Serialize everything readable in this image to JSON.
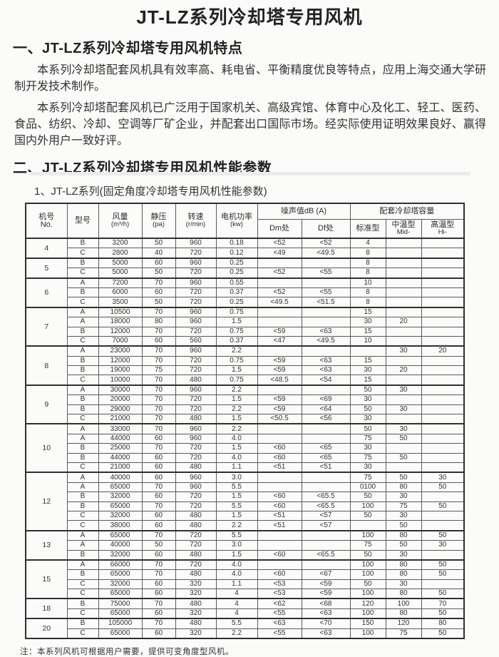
{
  "page": {
    "title": "JT-LZ系列冷却塔专用风机",
    "section1": {
      "heading": "一、JT-LZ系列冷却塔专用风机特点",
      "para1": "本系列冷却塔配套风机具有效率高、耗电省、平衡精度优良等特点，应用上海交通大学研制开发技术制作。",
      "para2": "本系列冷却塔配套风机已广泛用于国家机关、高级宾馆、体育中心及化工、轻工、医药、食品、纺织、冷却、空调等厂矿企业，并配套出口国际市场。经实际使用证明效果良好、赢得国内外用户一致好评。"
    },
    "section2": {
      "heading": "二、JT-LZ系列冷却塔专用风机性能参数",
      "subheading": "1、JT-LZ系列(固定角度冷却塔专用风机性能参数)"
    },
    "note": "注：本系列风机可根据用户需要，提供可变角度型风机。"
  },
  "table": {
    "headers": {
      "machine_no": {
        "l1": "机号",
        "l2": "No."
      },
      "model": "型号",
      "airflow": {
        "l1": "风量",
        "l2": "(m³/h)"
      },
      "static_pressure": {
        "l1": "静压",
        "l2": "(pa)"
      },
      "speed": {
        "l1": "转速",
        "l2": "(r/min)"
      },
      "power": {
        "l1": "电机功率",
        "l2": "(kw)"
      },
      "noise_group": "噪声值dB (A)",
      "noise_dm": "Dm处",
      "noise_df": "Df处",
      "capacity_group": "配套冷却塔容量",
      "cap_std": "标准型",
      "cap_mid": {
        "l1": "中温型",
        "l2": "Mid-"
      },
      "cap_hi": {
        "l1": "高温型",
        "l2": "Hi-"
      }
    },
    "groups": [
      {
        "no": "4",
        "rows": [
          [
            "B",
            "3200",
            "50",
            "960",
            "0.18",
            "<52",
            "<52",
            "4",
            "",
            ""
          ],
          [
            "C",
            "2800",
            "40",
            "720",
            "0.12",
            "<49",
            "<49.5",
            "8",
            "",
            ""
          ]
        ]
      },
      {
        "no": "5",
        "rows": [
          [
            "B",
            "5000",
            "60",
            "960",
            "0.25",
            "",
            "",
            "8",
            "",
            ""
          ],
          [
            "C",
            "5000",
            "50",
            "720",
            "0.25",
            "<52",
            "<55",
            "8",
            "",
            ""
          ]
        ]
      },
      {
        "no": "6",
        "rows": [
          [
            "A",
            "7200",
            "70",
            "960",
            "0.55",
            "",
            "",
            "10",
            "",
            ""
          ],
          [
            "B",
            "6000",
            "60",
            "720",
            "0.37",
            "<52",
            "<55",
            "8",
            "",
            ""
          ],
          [
            "C",
            "3500",
            "50",
            "720",
            "0.25",
            "<49.5",
            "<51.5",
            "8",
            "",
            ""
          ]
        ]
      },
      {
        "no": "7",
        "rows": [
          [
            "A",
            "10500",
            "70",
            "960",
            "0.75",
            "",
            "",
            "15",
            "",
            ""
          ],
          [
            "A",
            "18000",
            "80",
            "960",
            "1.5",
            "",
            "",
            "30",
            "20",
            ""
          ],
          [
            "B",
            "12000",
            "70",
            "720",
            "0.75",
            "<59",
            "<63",
            "15",
            "",
            ""
          ],
          [
            "C",
            "7000",
            "60",
            "560",
            "0.37",
            "<47",
            "<49.5",
            "10",
            "",
            ""
          ]
        ]
      },
      {
        "no": "8",
        "rows": [
          [
            "A",
            "23000",
            "70",
            "960",
            "2.2",
            "",
            "",
            "",
            "30",
            "20"
          ],
          [
            "B",
            "12000",
            "70",
            "720",
            "0.75",
            "<59",
            "<63",
            "15",
            "",
            ""
          ],
          [
            "B",
            "19000",
            "75",
            "720",
            "1.5",
            "<59",
            "<63",
            "30",
            "20",
            ""
          ],
          [
            "C",
            "10000",
            "70",
            "480",
            "0.75",
            "<48.5",
            "<54",
            "15",
            "",
            ""
          ]
        ]
      },
      {
        "no": "9",
        "rows": [
          [
            "A",
            "30000",
            "70",
            "960",
            "2.2",
            "",
            "",
            "50",
            "30",
            ""
          ],
          [
            "B",
            "20000",
            "70",
            "720",
            "1.5",
            "<59",
            "<69",
            "30",
            "",
            ""
          ],
          [
            "B",
            "29000",
            "70",
            "720",
            "2.2",
            "<59",
            "<64",
            "50",
            "30",
            ""
          ],
          [
            "C",
            "21000",
            "70",
            "480",
            "1.5",
            "<50.5",
            "<56",
            "30",
            "",
            ""
          ]
        ]
      },
      {
        "no": "10",
        "rows": [
          [
            "A",
            "33000",
            "70",
            "960",
            "2.2",
            "",
            "",
            "50",
            "30",
            ""
          ],
          [
            "A",
            "44000",
            "60",
            "960",
            "4.0",
            "",
            "",
            "75",
            "50",
            ""
          ],
          [
            "B",
            "25000",
            "70",
            "720",
            "1.5",
            "<60",
            "<65",
            "30",
            "",
            ""
          ],
          [
            "B",
            "44000",
            "60",
            "720",
            "4.0",
            "<60",
            "<65",
            "75",
            "50",
            ""
          ],
          [
            "C",
            "21000",
            "60",
            "480",
            "1.1",
            "<51",
            "<51",
            "30",
            "",
            ""
          ]
        ]
      },
      {
        "no": "12",
        "rows": [
          [
            "A",
            "40000",
            "60",
            "960",
            "3.0",
            "",
            "",
            "75",
            "50",
            "30"
          ],
          [
            "A",
            "65000",
            "70",
            "960",
            "5.5",
            "",
            "",
            "0100",
            "80",
            "50"
          ],
          [
            "B",
            "32000",
            "60",
            "720",
            "1.5",
            "<60",
            "<65.5",
            "50",
            "30",
            ""
          ],
          [
            "B",
            "65000",
            "70",
            "720",
            "5.5",
            "<60",
            "<65.5",
            "100",
            "75",
            "50"
          ],
          [
            "C",
            "32000",
            "60",
            "480",
            "1.5",
            "<51",
            "<57",
            "50",
            "30",
            ""
          ],
          [
            "C",
            "38000",
            "60",
            "480",
            "2.2",
            "<51",
            "<57",
            "",
            "50",
            ""
          ]
        ]
      },
      {
        "no": "13",
        "rows": [
          [
            "A",
            "65000",
            "70",
            "720",
            "5.5",
            "",
            "",
            "100",
            "80",
            "50"
          ],
          [
            "A",
            "40000",
            "50",
            "720",
            "3.0",
            "",
            "",
            "75",
            "50",
            "30"
          ],
          [
            "B",
            "32000",
            "60",
            "480",
            "1.5",
            "<60",
            "<65.5",
            "50",
            "30",
            ""
          ]
        ]
      },
      {
        "no": "15",
        "rows": [
          [
            "A",
            "66000",
            "70",
            "720",
            "4.0",
            "",
            "",
            "100",
            "80",
            "50"
          ],
          [
            "B",
            "65000",
            "70",
            "480",
            "4.0",
            "<60",
            "<67",
            "100",
            "80",
            "50"
          ],
          [
            "C",
            "32000",
            "60",
            "320",
            "1.1",
            "<53",
            "<59",
            "50",
            "30",
            ""
          ],
          [
            "C",
            "65000",
            "60",
            "320",
            "4",
            "<53",
            "<59",
            "100",
            "80",
            "50"
          ]
        ]
      },
      {
        "no": "18",
        "rows": [
          [
            "B",
            "75000",
            "70",
            "480",
            "4",
            "<62",
            "<68",
            "120",
            "100",
            "70"
          ],
          [
            "C",
            "65000",
            "60",
            "320",
            "4",
            "<55",
            "<63",
            "100",
            "80",
            "50"
          ]
        ]
      },
      {
        "no": "20",
        "rows": [
          [
            "B",
            "105000",
            "70",
            "480",
            "5.5",
            "<63",
            "<70",
            "150",
            "120",
            "80"
          ],
          [
            "C",
            "65000",
            "60",
            "320",
            "2.2",
            "<55",
            "<63",
            "100",
            "75",
            "50"
          ]
        ]
      }
    ]
  }
}
